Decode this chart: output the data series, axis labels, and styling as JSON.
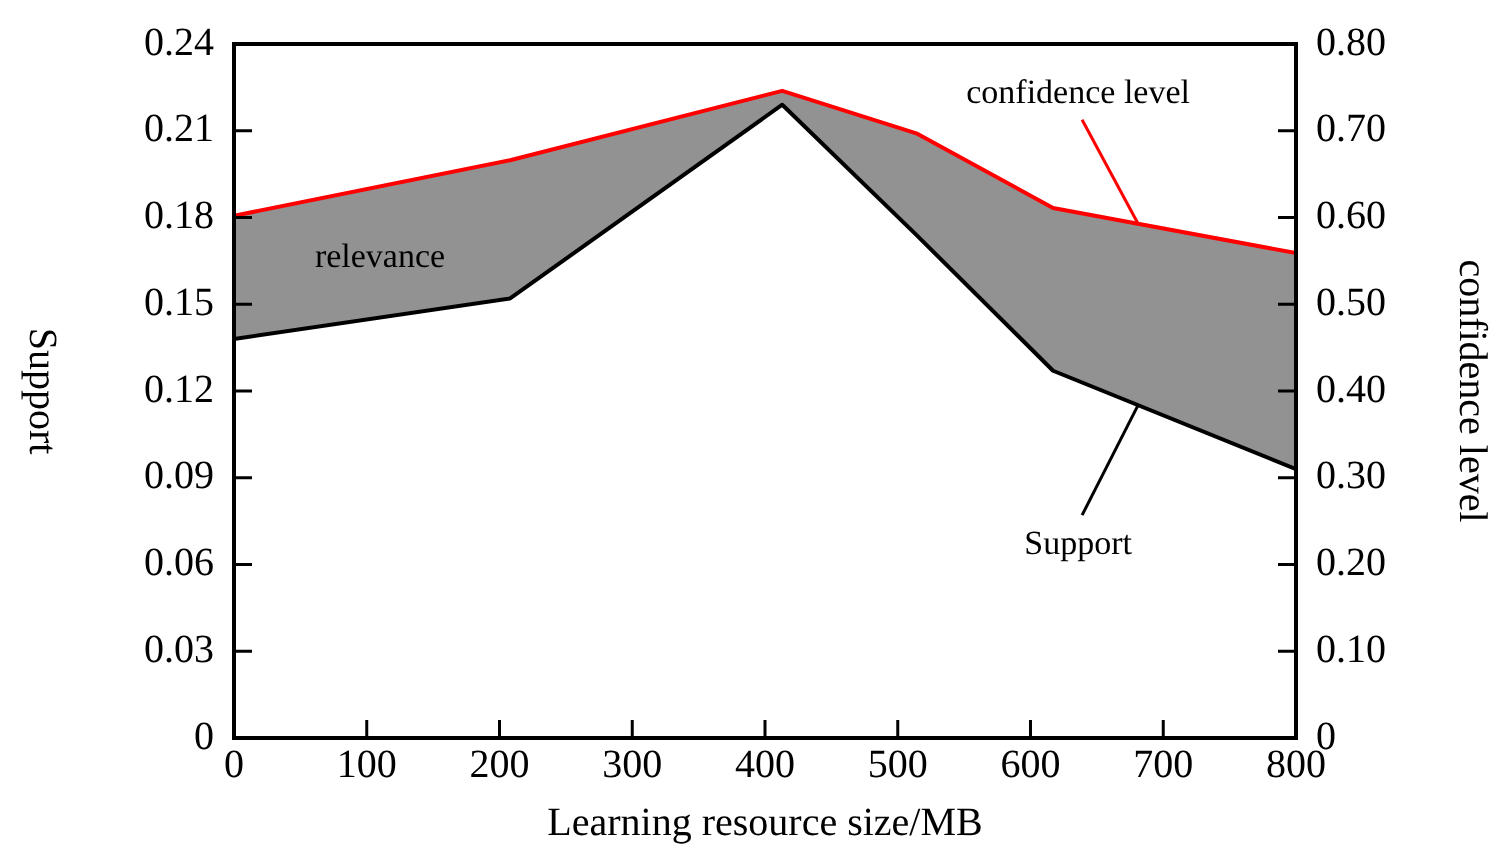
{
  "chart_data": {
    "type": "line",
    "xlabel": "Learning resource size/MB",
    "ylabel": "Support",
    "y2label": "confidence level",
    "series": [
      {
        "name": "Support",
        "color": "#000000",
        "x": [
          0,
          208,
          413,
          514,
          617,
          800
        ],
        "values": [
          0.138,
          0.152,
          0.219,
          0.174,
          0.127,
          0.093
        ],
        "lower": [
          0.138,
          0.152,
          0.219,
          0.174,
          0.127,
          0.093
        ],
        "upper": [
          0.181,
          0.2,
          0.224,
          0.209,
          0.183,
          0.168
        ]
      },
      {
        "name": "confidence level",
        "axis": "y2",
        "color": "#ff0000",
        "x": [
          0,
          208,
          413,
          514,
          617,
          800
        ],
        "values": [
          0.602,
          0.666,
          0.746,
          0.697,
          0.611,
          0.559
        ]
      }
    ],
    "annotations": [
      "relevance"
    ],
    "xlim": [
      0,
      800
    ],
    "xticks": [
      0,
      100,
      200,
      300,
      400,
      500,
      600,
      700,
      800
    ],
    "ylim": [
      0,
      0.24
    ],
    "yticks": [
      0,
      0.03,
      0.06,
      0.09,
      0.12,
      0.15,
      0.18,
      0.21,
      0.24
    ],
    "y2lim": [
      0,
      0.8
    ],
    "y2ticks": [
      0,
      {
        "value": 0.1,
        "label": "0.10"
      },
      {
        "value": 0.2,
        "label": "0.20"
      },
      {
        "value": 0.3,
        "label": "0.30"
      },
      {
        "value": 0.4,
        "label": "0.40"
      },
      {
        "value": 0.5,
        "label": "0.50"
      },
      {
        "value": 0.6,
        "label": "0.60"
      },
      {
        "value": 0.7,
        "label": "0.70"
      },
      {
        "value": 0.8,
        "label": "0.80"
      }
    ],
    "legend": false,
    "grid": false,
    "marker": "none"
  }
}
